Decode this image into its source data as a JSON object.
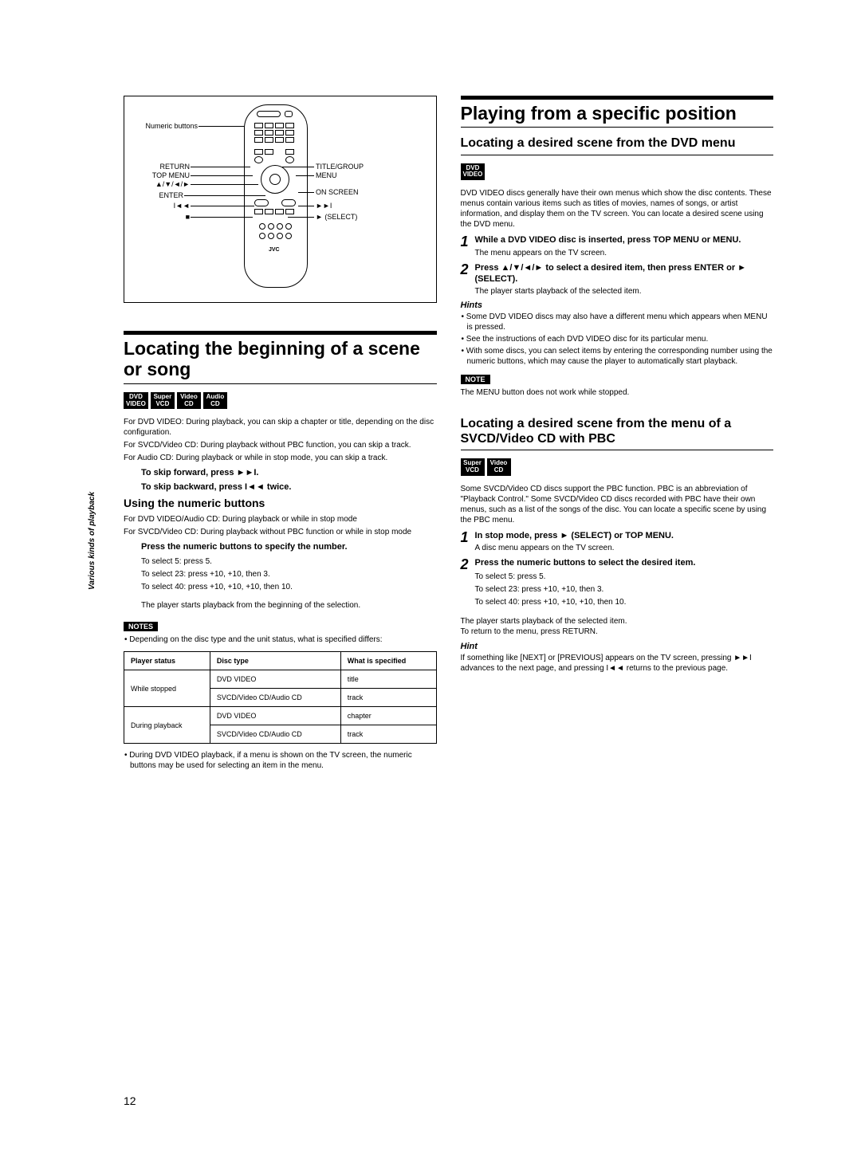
{
  "sidebar": "Various kinds of playback",
  "remote": {
    "left": {
      "numeric": "Numeric buttons",
      "return": "RETURN",
      "top_menu": "TOP MENU",
      "arrows": "▲/▼/◄/►",
      "enter": "ENTER",
      "prev": "I◄◄",
      "stop": "■"
    },
    "right": {
      "title_group": "TITLE/GROUP",
      "menu": "MENU",
      "on_screen": "ON SCREEN",
      "next": "►►I",
      "select": "► (SELECT)"
    }
  },
  "left": {
    "h1": "Locating the beginning of a scene or song",
    "badges": [
      {
        "top": "DVD",
        "bot": "VIDEO"
      },
      {
        "top": "Super",
        "bot": "VCD"
      },
      {
        "top": "Video",
        "bot": "CD"
      },
      {
        "top": "Audio",
        "bot": "CD"
      }
    ],
    "intro": [
      "For DVD VIDEO: During playback, you can skip a chapter or title, depending on the disc configuration.",
      "For SVCD/Video CD: During playback without PBC function, you can skip a track.",
      "For Audio CD: During playback or while in stop mode, you can skip a track."
    ],
    "skip_fwd": "To skip forward, press ►►I.",
    "skip_back": "To skip backward, press I◄◄ twice.",
    "h3": "Using the numeric buttons",
    "numeric_intro": [
      "For DVD VIDEO/Audio CD: During playback or while in stop mode",
      "For SVCD/Video CD: During playback without PBC function or while in stop mode"
    ],
    "press_numeric": "Press the numeric buttons to specify the number.",
    "examples": [
      "To select 5: press 5.",
      "To select 23: press +10, +10, then 3.",
      "To select 40: press +10, +10, +10, then 10."
    ],
    "after_example": "The player starts playback from the beginning of the selection.",
    "notes_label": "NOTES",
    "note_bullets": [
      "Depending on the disc type and the unit status, what is specified differs:"
    ],
    "table": {
      "headers": [
        "Player status",
        "Disc type",
        "What is specified"
      ],
      "rows": [
        [
          "While stopped",
          "DVD VIDEO",
          "title"
        ],
        [
          "",
          "SVCD/Video CD/Audio CD",
          "track"
        ],
        [
          "During playback",
          "DVD VIDEO",
          "chapter"
        ],
        [
          "",
          "SVCD/Video CD/Audio CD",
          "track"
        ]
      ]
    },
    "note_after": "During DVD VIDEO playback, if a menu is shown on the TV screen, the numeric buttons may be used for selecting an item in the menu."
  },
  "right": {
    "h1": "Playing from a specific position",
    "sec1": {
      "h2": "Locating a desired scene from the DVD menu",
      "badges": [
        {
          "top": "DVD",
          "bot": "VIDEO"
        }
      ],
      "intro": "DVD VIDEO discs generally have their own menus which show the disc contents. These menus contain various items such as titles of movies, names of songs, or artist information, and display them on the TV screen. You can locate a desired scene using the DVD menu.",
      "step1_title": "While a DVD VIDEO disc is inserted, press TOP MENU or MENU.",
      "step1_sub": "The menu appears on the TV screen.",
      "step2_title": "Press ▲/▼/◄/► to select a desired item, then press ENTER or ► (SELECT).",
      "step2_sub": "The player starts playback of the selected item.",
      "hints_label": "Hints",
      "hints": [
        "Some DVD VIDEO discs may also have a different menu which appears when MENU is pressed.",
        "See the instructions of each DVD VIDEO disc for its particular menu.",
        "With some discs, you can select items by entering the corresponding number using the numeric buttons, which may cause the player to automatically start playback."
      ],
      "note_label": "NOTE",
      "note_text": "The MENU button does not work while stopped."
    },
    "sec2": {
      "h2": "Locating a desired scene from the menu of a SVCD/Video CD with PBC",
      "badges": [
        {
          "top": "Super",
          "bot": "VCD"
        },
        {
          "top": "Video",
          "bot": "CD"
        }
      ],
      "intro": "Some SVCD/Video CD discs support the PBC function. PBC is an abbreviation of \"Playback Control.\" Some SVCD/Video CD discs recorded with PBC have their own menus, such as a list of the songs of the disc. You can locate a specific scene by using the PBC menu.",
      "step1_title": "In stop mode, press ► (SELECT) or TOP MENU.",
      "step1_sub": "A disc menu appears on the TV screen.",
      "step2_title": "Press the numeric buttons to select the desired item.",
      "examples": [
        "To select 5: press 5.",
        "To select 23: press +10, +10, then 3.",
        "To select 40: press +10, +10, +10, then 10."
      ],
      "after": "The player starts playback of the selected item.\nTo return to the menu, press RETURN.",
      "hint_label": "Hint",
      "hint_text": "If something like [NEXT] or [PREVIOUS] appears on the TV screen, pressing ►►I advances to the next page, and pressing I◄◄ returns to the previous page."
    }
  },
  "pageNum": "12"
}
